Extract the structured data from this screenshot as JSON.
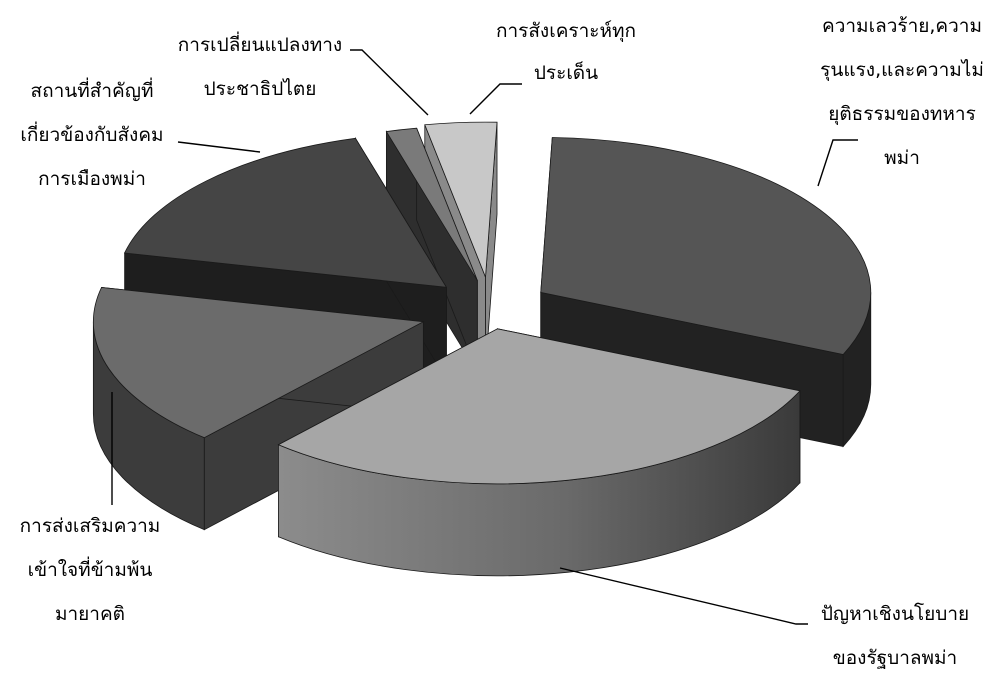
{
  "chart_data": {
    "type": "pie",
    "style": "3d-exploded",
    "title": "",
    "legend": "none",
    "slices": [
      {
        "label": "ความเลวร้าย,ความรุนแรง,และความไม่ยุติธรรมของทหารพม่า",
        "lines": [
          "ความเลวร้าย,ความ",
          "รุนแรง,และความไม่",
          "ยุติธรรมของทหาร",
          "พม่า"
        ],
        "value": 31,
        "color": "#555555"
      },
      {
        "label": "ปัญหาเชิงนโยบายของรัฐบาลพม่า",
        "lines": [
          "ปัญหาเชิงนโยบาย",
          "ของรัฐบาลพม่า"
        ],
        "value": 30,
        "color": "#a6a6a6"
      },
      {
        "label": "การส่งเสริมความเข้าใจที่ข้ามพ้นมายาคติ",
        "lines": [
          "การส่งเสริมความ",
          "เข้าใจที่ข้ามพ้น",
          "มายาคติ"
        ],
        "value": 17,
        "color": "#6b6b6b"
      },
      {
        "label": "สถานที่สำคัญที่เกี่ยวข้องกับสังคมการเมืองพม่า",
        "lines": [
          "สถานที่สำคัญที่",
          "เกี่ยวข้องกับสังคม",
          "การเมืองพม่า"
        ],
        "value": 17,
        "color": "#454545"
      },
      {
        "label": "การเปลี่ยนแปลงทางประชาธิปไตย",
        "lines": [
          "การเปลี่ยนแปลงทาง",
          "ประชาธิปไตย"
        ],
        "value": 1.5,
        "color": "#7a7a7a"
      },
      {
        "label": "การสังเคราะห์ทุกประเด็น",
        "lines": [
          "การสังเคราะห์ทุก",
          "ประเด็น"
        ],
        "value": 3.5,
        "color": "#c8c8c8"
      }
    ]
  }
}
